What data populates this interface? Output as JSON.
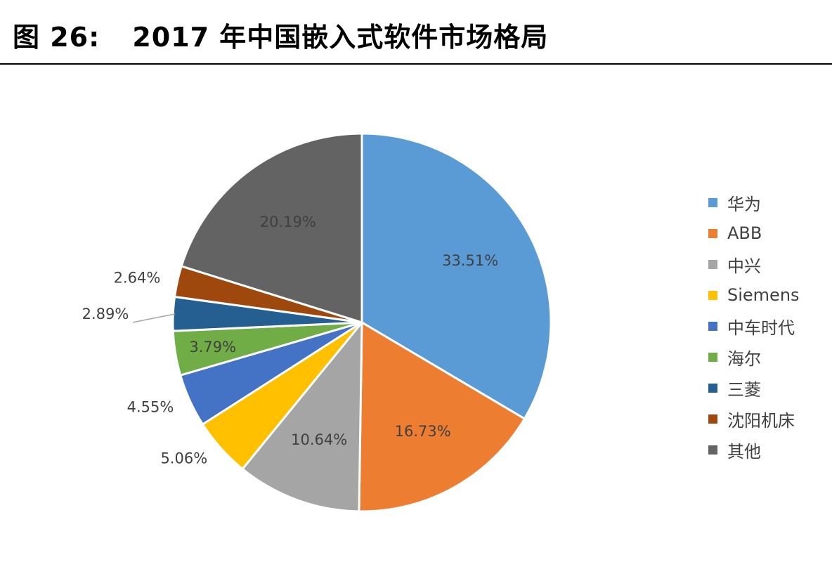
{
  "figure": {
    "number": "图 26:",
    "title": "2017 年中国嵌入式软件市场格局"
  },
  "chart_data": {
    "type": "pie",
    "title": "",
    "start_angle_deg": 0,
    "direction": "clockwise",
    "slices": [
      {
        "name": "华为",
        "value": 33.51,
        "label": "33.51%",
        "color": "#5B9BD5",
        "label_placement": "inside",
        "label_color": "#404040"
      },
      {
        "name": "ABB",
        "value": 16.73,
        "label": "16.73%",
        "color": "#ED7D31",
        "label_placement": "inside",
        "label_color": "#404040"
      },
      {
        "name": "中兴",
        "value": 10.64,
        "label": "10.64%",
        "color": "#A5A5A5",
        "label_placement": "inside",
        "label_color": "#404040"
      },
      {
        "name": "Siemens",
        "value": 5.06,
        "label": "5.06%",
        "color": "#FFC000",
        "label_placement": "outside",
        "label_color": "#404040"
      },
      {
        "name": "中车时代",
        "value": 4.55,
        "label": "4.55%",
        "color": "#4472C4",
        "label_placement": "outside",
        "label_color": "#404040"
      },
      {
        "name": "海尔",
        "value": 3.79,
        "label": "3.79%",
        "color": "#70AD47",
        "label_placement": "inside",
        "label_color": "#404040"
      },
      {
        "name": "三菱",
        "value": 2.89,
        "label": "2.89%",
        "color": "#255E91",
        "label_placement": "outside-leader",
        "label_color": "#404040"
      },
      {
        "name": "沈阳机床",
        "value": 2.64,
        "label": "2.64%",
        "color": "#9E480E",
        "label_placement": "outside",
        "label_color": "#404040"
      },
      {
        "name": "其他",
        "value": 20.19,
        "label": "20.19%",
        "color": "#636363",
        "label_placement": "inside",
        "label_color": "#404040"
      }
    ],
    "legend_position": "right"
  }
}
